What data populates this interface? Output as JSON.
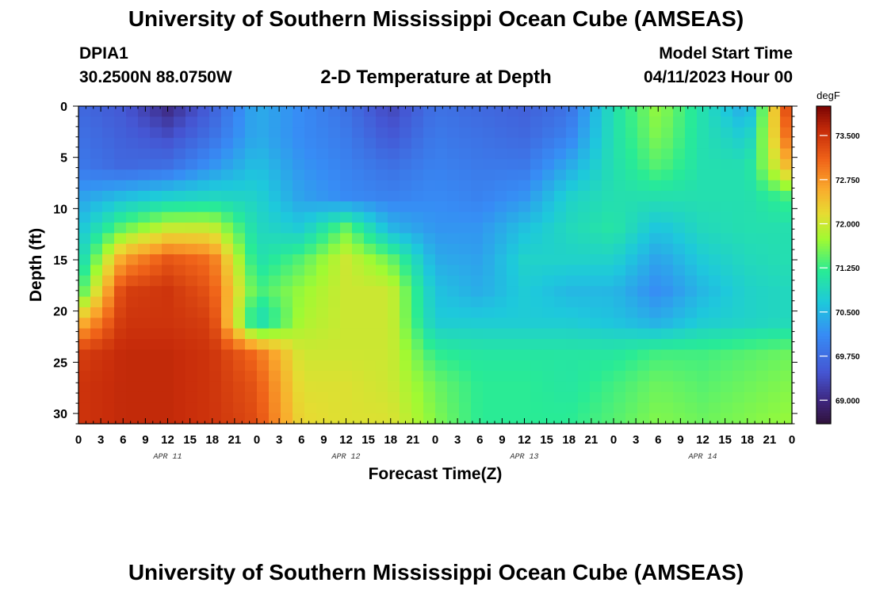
{
  "header": {
    "title": "University of Southern Mississippi Ocean Cube (AMSEAS)",
    "station": "DPIA1",
    "coordinates": "30.2500N  88.0750W",
    "subtitle": "2-D Temperature at Depth",
    "model_start_label": "Model Start Time",
    "model_start_value": "04/11/2023 Hour 00"
  },
  "footer": {
    "title": "University of Southern Mississippi Ocean Cube (AMSEAS)"
  },
  "chart_data": {
    "type": "heatmap",
    "title": "2-D Temperature at Depth",
    "xlabel": "Forecast Time(Z)",
    "ylabel": "Depth (ft)",
    "x_range_hours": [
      0,
      96
    ],
    "x_tick_labels": [
      "0",
      "3",
      "6",
      "9",
      "12",
      "15",
      "18",
      "21",
      "0",
      "3",
      "6",
      "9",
      "12",
      "15",
      "18",
      "21",
      "0",
      "3",
      "6",
      "9",
      "12",
      "15",
      "18",
      "21",
      "0",
      "3",
      "6",
      "9",
      "12",
      "15",
      "18",
      "21",
      "0"
    ],
    "date_labels": [
      "APR 11",
      "APR 12",
      "APR 13",
      "APR 14"
    ],
    "ylim": [
      0,
      31
    ],
    "y_ticks": [
      0,
      5,
      10,
      15,
      20,
      25,
      30
    ],
    "colorbar": {
      "label": "degF",
      "range": [
        68.6,
        74.0
      ],
      "ticks": [
        69.0,
        69.75,
        70.5,
        71.25,
        72.0,
        72.75,
        73.5
      ],
      "tick_labels": [
        "69.000",
        "69.750",
        "70.500",
        "71.250",
        "72.000",
        "72.750",
        "73.500"
      ]
    },
    "depths_ft": [
      0,
      3,
      6,
      9,
      12,
      15,
      18,
      21,
      24,
      27,
      31
    ],
    "times_hr": [
      0,
      6,
      12,
      18,
      24,
      30,
      36,
      42,
      48,
      54,
      60,
      66,
      72,
      78,
      84,
      90,
      96
    ],
    "values_degF": [
      [
        69.7,
        69.5,
        69.0,
        69.6,
        70.4,
        70.1,
        69.8,
        69.3,
        69.8,
        69.7,
        69.6,
        69.8,
        71.0,
        71.7,
        71.0,
        70.3,
        73.7
      ],
      [
        69.8,
        69.6,
        69.4,
        69.8,
        70.4,
        70.1,
        69.9,
        69.5,
        69.9,
        69.8,
        69.7,
        70.0,
        71.0,
        71.6,
        71.0,
        70.7,
        73.3
      ],
      [
        69.9,
        69.7,
        69.8,
        70.2,
        70.6,
        70.2,
        70.0,
        69.8,
        70.0,
        69.9,
        69.9,
        70.4,
        71.0,
        71.4,
        71.0,
        71.0,
        72.6
      ],
      [
        70.3,
        70.6,
        70.8,
        70.9,
        70.8,
        70.3,
        70.1,
        70.0,
        70.1,
        70.0,
        70.2,
        70.8,
        71.0,
        71.0,
        71.0,
        71.0,
        71.3
      ],
      [
        70.6,
        71.5,
        72.0,
        72.0,
        70.9,
        70.7,
        71.5,
        70.5,
        70.2,
        70.2,
        70.6,
        70.9,
        71.1,
        70.6,
        70.9,
        71.0,
        71.0
      ],
      [
        70.8,
        72.7,
        73.2,
        73.0,
        71.0,
        71.4,
        72.0,
        71.5,
        70.4,
        70.3,
        70.8,
        70.8,
        70.8,
        70.3,
        70.7,
        70.9,
        71.0
      ],
      [
        71.2,
        73.4,
        73.5,
        73.2,
        71.3,
        71.7,
        72.0,
        72.0,
        70.6,
        70.4,
        70.7,
        70.5,
        70.5,
        70.1,
        70.5,
        70.8,
        70.9
      ],
      [
        72.4,
        73.5,
        73.5,
        73.4,
        70.8,
        71.8,
        72.0,
        72.0,
        70.7,
        70.7,
        70.7,
        70.7,
        70.6,
        70.4,
        70.7,
        70.8,
        70.9
      ],
      [
        73.4,
        73.6,
        73.6,
        73.5,
        73.0,
        72.0,
        72.0,
        72.0,
        71.2,
        71.1,
        71.1,
        71.1,
        71.1,
        71.3,
        71.3,
        71.4,
        71.5
      ],
      [
        73.5,
        73.6,
        73.6,
        73.5,
        73.2,
        72.1,
        72.1,
        72.0,
        71.5,
        71.2,
        71.2,
        71.1,
        71.3,
        71.5,
        71.4,
        71.5,
        71.6
      ],
      [
        73.5,
        73.6,
        73.6,
        73.5,
        73.3,
        72.2,
        72.1,
        72.1,
        71.6,
        71.2,
        71.2,
        71.2,
        71.4,
        71.6,
        71.5,
        71.6,
        71.7
      ]
    ]
  }
}
